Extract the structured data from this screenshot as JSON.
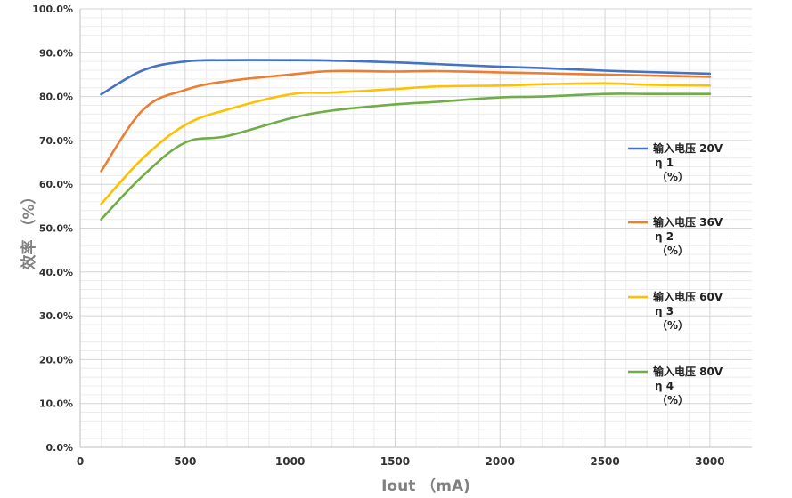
{
  "chart_data": {
    "type": "line",
    "xlabel": "Iout （mA)",
    "ylabel": "效率 （%）",
    "xlim": [
      0,
      3200
    ],
    "ylim": [
      0,
      100
    ],
    "x_ticks": [
      "0",
      "500",
      "1000",
      "1500",
      "2000",
      "2500",
      "3000"
    ],
    "y_ticks": [
      "0.0%",
      "10.0%",
      "20.0%",
      "30.0%",
      "40.0%",
      "50.0%",
      "60.0%",
      "70.0%",
      "80.0%",
      "90.0%",
      "100.0%"
    ],
    "grid": true,
    "legend_position": "right",
    "x": [
      100,
      300,
      500,
      700,
      1000,
      1200,
      1500,
      1700,
      2000,
      2200,
      2500,
      2700,
      3000
    ],
    "series": [
      {
        "legend_lines": [
          "输入电压 20V",
          "η 1",
          "（%）"
        ],
        "color": "#4472C4",
        "values": [
          80.5,
          86.0,
          88.0,
          88.3,
          88.3,
          88.2,
          87.8,
          87.4,
          86.8,
          86.5,
          85.9,
          85.6,
          85.2
        ]
      },
      {
        "legend_lines": [
          "输入电压 36V",
          "η 2",
          "（%）"
        ],
        "color": "#ED7D31",
        "values": [
          63.0,
          77.0,
          81.5,
          83.5,
          85.0,
          85.8,
          85.7,
          85.8,
          85.5,
          85.3,
          85.0,
          84.8,
          84.5
        ]
      },
      {
        "legend_lines": [
          "输入电压 60V",
          "η 3",
          "（%）"
        ],
        "color": "#FFC000",
        "values": [
          55.5,
          66.0,
          73.5,
          77.0,
          80.5,
          80.9,
          81.7,
          82.3,
          82.5,
          82.8,
          83.0,
          82.7,
          82.5
        ]
      },
      {
        "legend_lines": [
          "输入电压 80V",
          "η 4",
          "（%）"
        ],
        "color": "#70AD47",
        "values": [
          52.0,
          62.0,
          69.5,
          71.0,
          75.0,
          76.8,
          78.2,
          78.8,
          79.8,
          80.0,
          80.6,
          80.6,
          80.6
        ]
      }
    ]
  }
}
